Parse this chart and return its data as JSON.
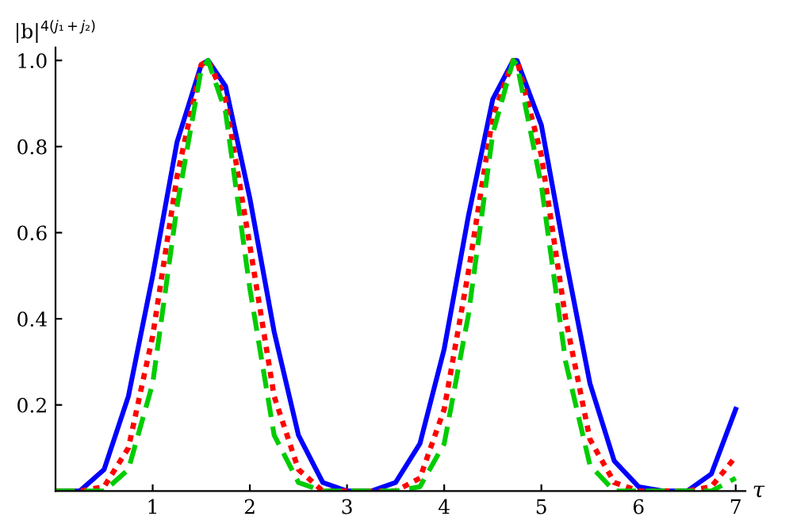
{
  "chart_data": {
    "type": "line",
    "xlabel": "τ",
    "ylabel": "|b|$^{4(j₁+j₂)}$",
    "x": [
      0,
      0.25,
      0.5,
      0.75,
      1,
      1.25,
      1.5,
      1.57,
      1.75,
      2,
      2.25,
      2.5,
      2.75,
      3,
      3.25,
      3.5,
      3.75,
      4,
      4.25,
      4.5,
      4.71,
      4.75,
      5,
      5.25,
      5.5,
      5.75,
      6,
      6.25,
      6.5,
      6.75,
      7
    ],
    "series": [
      {
        "color": "#0000ff",
        "line_style": "solid",
        "values": [
          0,
          0,
          0.05,
          0.22,
          0.5,
          0.81,
          0.99,
          1.0,
          0.94,
          0.68,
          0.37,
          0.13,
          0.02,
          0,
          0,
          0.02,
          0.11,
          0.33,
          0.64,
          0.91,
          1.0,
          1.0,
          0.85,
          0.54,
          0.25,
          0.07,
          0.01,
          0,
          0,
          0.04,
          0.19
        ]
      },
      {
        "color": "#ff0000",
        "line_style": "dotted",
        "values": [
          0,
          0,
          0.01,
          0.1,
          0.36,
          0.73,
          0.99,
          1.0,
          0.91,
          0.57,
          0.22,
          0.05,
          0,
          0,
          0,
          0,
          0.03,
          0.19,
          0.51,
          0.87,
          1.0,
          1.0,
          0.78,
          0.4,
          0.12,
          0.02,
          0,
          0,
          0,
          0.01,
          0.08
        ]
      },
      {
        "color": "#00cc00",
        "line_style": "dashed",
        "values": [
          0,
          0,
          0,
          0.05,
          0.25,
          0.66,
          0.98,
          1.0,
          0.88,
          0.47,
          0.13,
          0.02,
          0,
          0,
          0,
          0,
          0.01,
          0.11,
          0.41,
          0.83,
          1.0,
          0.99,
          0.71,
          0.3,
          0.06,
          0,
          0,
          0,
          0,
          0,
          0.03
        ]
      }
    ],
    "xlim": [
      0,
      7.1
    ],
    "ylim": [
      0,
      1.03
    ],
    "xticks": [
      1,
      2,
      3,
      4,
      5,
      6,
      7
    ],
    "yticks": [
      0.2,
      0.4,
      0.6,
      0.8,
      {
        "value": 1,
        "label": "1.0"
      }
    ],
    "grid": false,
    "legend": false
  }
}
